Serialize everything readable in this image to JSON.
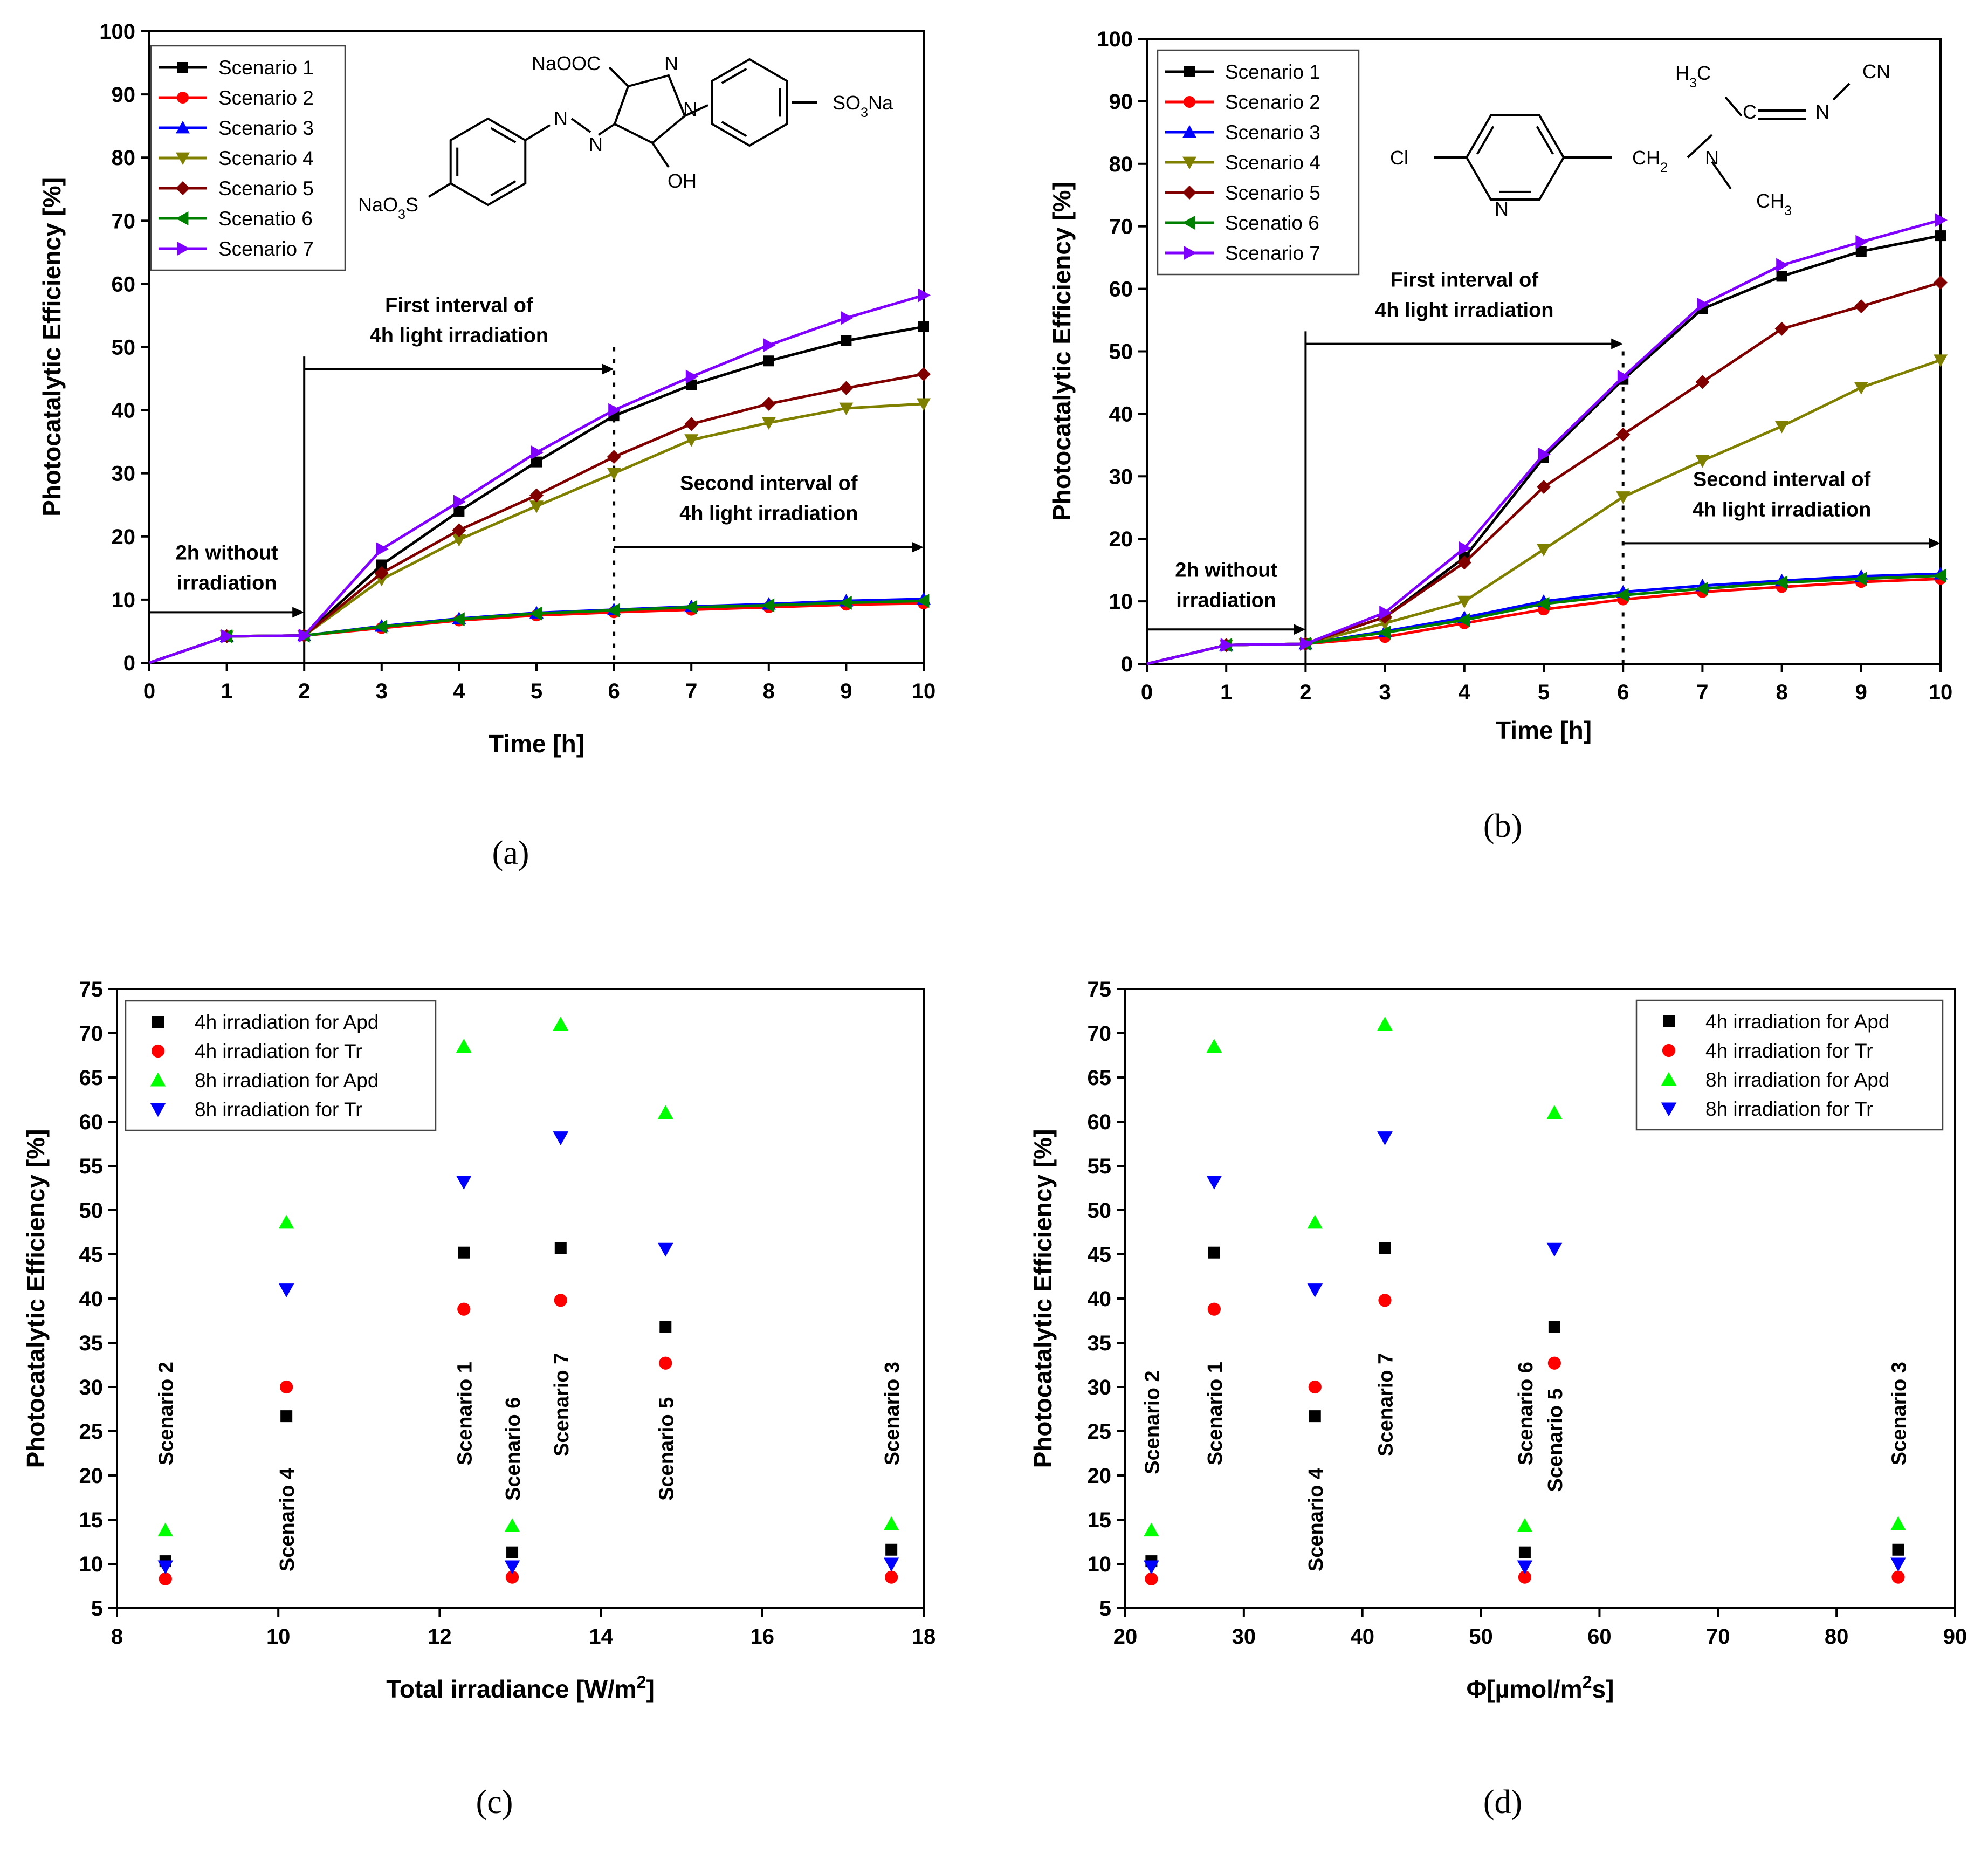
{
  "figure": {
    "panels": [
      {
        "id": "a",
        "label": "(a)",
        "chart_data": {
          "type": "line",
          "xlabel": "Time [h]",
          "ylabel": "Photocatalytic Efficiency [%]",
          "xlim": [
            0,
            10
          ],
          "ylim": [
            0,
            100
          ],
          "xticks": [
            0,
            1,
            2,
            3,
            4,
            5,
            6,
            7,
            8,
            9,
            10
          ],
          "yticks": [
            0,
            10,
            20,
            30,
            40,
            50,
            60,
            70,
            80,
            90,
            100
          ],
          "legend_position": "top-left",
          "x": [
            0,
            1,
            2,
            3,
            4,
            5,
            6,
            7,
            8,
            9,
            10
          ],
          "series": [
            {
              "name": "Scenario 1",
              "color": "#000000",
              "marker": "square",
              "values": [
                0,
                4.2,
                4.3,
                15.5,
                24,
                31.8,
                39.1,
                44,
                47.8,
                51,
                53.2
              ]
            },
            {
              "name": "Scenario 2",
              "color": "#ff0000",
              "marker": "circle",
              "values": [
                0,
                4.2,
                4.3,
                5.5,
                6.7,
                7.5,
                8,
                8.4,
                8.8,
                9.2,
                9.4
              ]
            },
            {
              "name": "Scenario 3",
              "color": "#0000ff",
              "marker": "triangle-up",
              "values": [
                0,
                4.2,
                4.3,
                5.8,
                7,
                7.9,
                8.4,
                8.9,
                9.3,
                9.8,
                10.1
              ]
            },
            {
              "name": "Scenario 4",
              "color": "#808000",
              "marker": "triangle-down",
              "values": [
                0,
                4.2,
                4.3,
                13.2,
                19.5,
                24.8,
                30,
                35.3,
                38,
                40.3,
                41
              ]
            },
            {
              "name": "Scenario 5",
              "color": "#800000",
              "marker": "diamond",
              "values": [
                0,
                4.2,
                4.3,
                14.2,
                21,
                26.5,
                32.6,
                37.8,
                41,
                43.5,
                45.7
              ]
            },
            {
              "name": "Scenatio 6",
              "color": "#008000",
              "marker": "triangle-left",
              "values": [
                0,
                4.2,
                4.3,
                5.7,
                6.9,
                7.8,
                8.3,
                8.8,
                9.1,
                9.5,
                9.8
              ]
            },
            {
              "name": "Scenario 7",
              "color": "#8000ff",
              "marker": "triangle-right",
              "values": [
                0,
                4.2,
                4.3,
                18,
                25.5,
                33.3,
                40,
                45.3,
                50.3,
                54.6,
                58.2
              ]
            }
          ],
          "annotations": [
            {
              "lines": [
                "2h without",
                "irradiation"
              ],
              "arrow_from_x": 0,
              "arrow_to_x": 2,
              "arrow_y": 8
            },
            {
              "lines": [
                "First interval of",
                "4h light irradiation"
              ],
              "arrow_from_x": 2,
              "arrow_to_x": 6,
              "arrow_y": 46.5
            },
            {
              "lines": [
                "Second interval of",
                "4h light irradiation"
              ],
              "arrow_from_x": 6,
              "arrow_to_x": 10,
              "arrow_y": 18.3
            }
          ],
          "structure_labels": [
            "NaOOC",
            "N",
            "N",
            "N",
            "N",
            "SO3Na",
            "OH",
            "NaO3S"
          ]
        }
      },
      {
        "id": "b",
        "label": "(b)",
        "chart_data": {
          "type": "line",
          "xlabel": "Time [h]",
          "ylabel": "Photocatalytic Efficiency [%]",
          "xlim": [
            0,
            10
          ],
          "ylim": [
            0,
            100
          ],
          "xticks": [
            0,
            1,
            2,
            3,
            4,
            5,
            6,
            7,
            8,
            9,
            10
          ],
          "yticks": [
            0,
            10,
            20,
            30,
            40,
            50,
            60,
            70,
            80,
            90,
            100
          ],
          "legend_position": "top-left",
          "x": [
            0,
            1,
            2,
            3,
            4,
            5,
            6,
            7,
            8,
            9,
            10
          ],
          "series": [
            {
              "name": "Scenario 1",
              "color": "#000000",
              "marker": "square",
              "values": [
                0,
                3,
                3.2,
                7.5,
                17,
                33,
                45.5,
                56.8,
                62,
                66,
                68.5
              ]
            },
            {
              "name": "Scenario 2",
              "color": "#ff0000",
              "marker": "circle",
              "values": [
                0,
                3,
                3.2,
                4.3,
                6.5,
                8.7,
                10.3,
                11.5,
                12.3,
                13.1,
                13.6
              ]
            },
            {
              "name": "Scenario 3",
              "color": "#0000ff",
              "marker": "triangle-up",
              "values": [
                0,
                3,
                3.2,
                5.2,
                7.4,
                10,
                11.5,
                12.5,
                13.3,
                14,
                14.4
              ]
            },
            {
              "name": "Scenario 4",
              "color": "#808000",
              "marker": "triangle-down",
              "values": [
                0,
                3,
                3.2,
                6.5,
                10,
                18.3,
                26.7,
                32.5,
                38,
                44.2,
                48.6
              ]
            },
            {
              "name": "Scenario 5",
              "color": "#800000",
              "marker": "diamond",
              "values": [
                0,
                3,
                3.2,
                7.5,
                16.2,
                28.3,
                36.7,
                45.1,
                53.6,
                57.2,
                61
              ]
            },
            {
              "name": "Scenatio 6",
              "color": "#008000",
              "marker": "triangle-left",
              "values": [
                0,
                3,
                3.2,
                5,
                7,
                9.6,
                11,
                12,
                13,
                13.6,
                14.1
              ]
            },
            {
              "name": "Scenario 7",
              "color": "#8000ff",
              "marker": "triangle-right",
              "values": [
                0,
                3,
                3.2,
                8.2,
                18.5,
                33.5,
                45.9,
                57.5,
                63.8,
                67.5,
                71
              ]
            }
          ],
          "annotations": [
            {
              "lines": [
                "2h without",
                "irradiation"
              ],
              "arrow_from_x": 0,
              "arrow_to_x": 2,
              "arrow_y": 5.5
            },
            {
              "lines": [
                "First interval of",
                "4h light irradiation"
              ],
              "arrow_from_x": 2,
              "arrow_to_x": 6,
              "arrow_y": 51.2
            },
            {
              "lines": [
                "Second interval of",
                "4h light irradiation"
              ],
              "arrow_from_x": 6,
              "arrow_to_x": 10,
              "arrow_y": 19.3
            }
          ],
          "structure_labels": [
            "H3C",
            "C",
            "N",
            "CN",
            "Cl",
            "N",
            "CH2",
            "N",
            "CH3"
          ]
        }
      },
      {
        "id": "c",
        "label": "(c)",
        "chart_data": {
          "type": "scatter",
          "xlabel": "Total irradiance [W/m2]",
          "ylabel": "Photocatalytic Efficiency [%]",
          "xlim": [
            8,
            18
          ],
          "ylim": [
            5,
            75
          ],
          "xticks": [
            8,
            10,
            12,
            14,
            16,
            18
          ],
          "yticks": [
            5,
            10,
            15,
            20,
            25,
            30,
            35,
            40,
            45,
            50,
            55,
            60,
            65,
            70,
            75
          ],
          "legend_position": "top-left",
          "series": [
            {
              "name": "4h irradiation for Apd",
              "color": "#000000",
              "marker": "square",
              "x": [
                8.6,
                10.1,
                12.3,
                12.9,
                13.5,
                14.8,
                17.6
              ],
              "values": [
                10.3,
                26.7,
                45.2,
                11.3,
                45.7,
                36.8,
                11.6
              ]
            },
            {
              "name": "4h irradiation for Tr",
              "color": "#ff0000",
              "marker": "circle",
              "x": [
                8.6,
                10.1,
                12.3,
                12.9,
                13.5,
                14.8,
                17.6
              ],
              "values": [
                8.3,
                30,
                38.8,
                8.5,
                39.8,
                32.7,
                8.5
              ]
            },
            {
              "name": "8h irradiation for Apd",
              "color": "#00ff00",
              "marker": "triangle-up",
              "x": [
                8.6,
                10.1,
                12.3,
                12.9,
                13.5,
                14.8,
                17.6
              ],
              "values": [
                13.8,
                48.6,
                68.5,
                14.3,
                71,
                61,
                14.5
              ]
            },
            {
              "name": "8h irradiation for Tr",
              "color": "#0000ff",
              "marker": "triangle-down",
              "x": [
                8.6,
                10.1,
                12.3,
                12.9,
                13.5,
                14.8,
                17.6
              ],
              "values": [
                9.7,
                41,
                53.2,
                9.7,
                58.2,
                45.6,
                10
              ]
            }
          ],
          "annotations": [
            {
              "text": "Scenario 2",
              "x": 8.6,
              "y_center": 27
            },
            {
              "text": "Scenario 4",
              "x": 10.1,
              "y_center": 15
            },
            {
              "text": "Scenario 1",
              "x": 12.3,
              "y_center": 27
            },
            {
              "text": "Scenario 6",
              "x": 12.9,
              "y_center": 23
            },
            {
              "text": "Scenario 7",
              "x": 13.5,
              "y_center": 28
            },
            {
              "text": "Scenario 5",
              "x": 14.8,
              "y_center": 23
            },
            {
              "text": "Scenario 3",
              "x": 17.6,
              "y_center": 27
            }
          ]
        }
      },
      {
        "id": "d",
        "label": "(d)",
        "chart_data": {
          "type": "scatter",
          "xlabel": "Φ[µmol/m2s]",
          "ylabel": "Photocatalytic Efficiency [%]",
          "xlim": [
            20,
            90
          ],
          "ylim": [
            5,
            75
          ],
          "xticks": [
            20,
            30,
            40,
            50,
            60,
            70,
            80,
            90
          ],
          "yticks": [
            5,
            10,
            15,
            20,
            25,
            30,
            35,
            40,
            45,
            50,
            55,
            60,
            65,
            70,
            75
          ],
          "legend_position": "top-right",
          "series": [
            {
              "name": "4h irradiation for Apd",
              "color": "#000000",
              "marker": "square",
              "x": [
                22.2,
                27.5,
                36,
                41.9,
                53.7,
                56.2,
                85.2
              ],
              "values": [
                10.3,
                45.2,
                26.7,
                45.7,
                11.3,
                36.8,
                11.6
              ]
            },
            {
              "name": "4h irradiation for Tr",
              "color": "#ff0000",
              "marker": "circle",
              "x": [
                22.2,
                27.5,
                36,
                41.9,
                53.7,
                56.2,
                85.2
              ],
              "values": [
                8.3,
                38.8,
                30,
                39.8,
                8.5,
                32.7,
                8.5
              ]
            },
            {
              "name": "8h irradiation for Apd",
              "color": "#00ff00",
              "marker": "triangle-up",
              "x": [
                22.2,
                27.5,
                36,
                41.9,
                53.7,
                56.2,
                85.2
              ],
              "values": [
                13.8,
                68.5,
                48.6,
                71,
                14.3,
                61,
                14.5
              ]
            },
            {
              "name": "8h irradiation for Tr",
              "color": "#0000ff",
              "marker": "triangle-down",
              "x": [
                22.2,
                27.5,
                36,
                41.9,
                53.7,
                56.2,
                85.2
              ],
              "values": [
                9.7,
                53.2,
                41,
                58.2,
                9.7,
                45.6,
                10
              ]
            }
          ],
          "annotations": [
            {
              "text": "Scenario 2",
              "x": 22.2,
              "y_center": 26
            },
            {
              "text": "Scenario 1",
              "x": 27.5,
              "y_center": 27
            },
            {
              "text": "Scenario 4",
              "x": 36,
              "y_center": 15
            },
            {
              "text": "Scenario 7",
              "x": 41.9,
              "y_center": 28
            },
            {
              "text": "Scenario 6",
              "x": 53.7,
              "y_center": 27
            },
            {
              "text": "Scenario 5",
              "x": 56.2,
              "y_center": 24
            },
            {
              "text": "Scenario 3",
              "x": 85.2,
              "y_center": 27
            }
          ]
        }
      }
    ]
  }
}
